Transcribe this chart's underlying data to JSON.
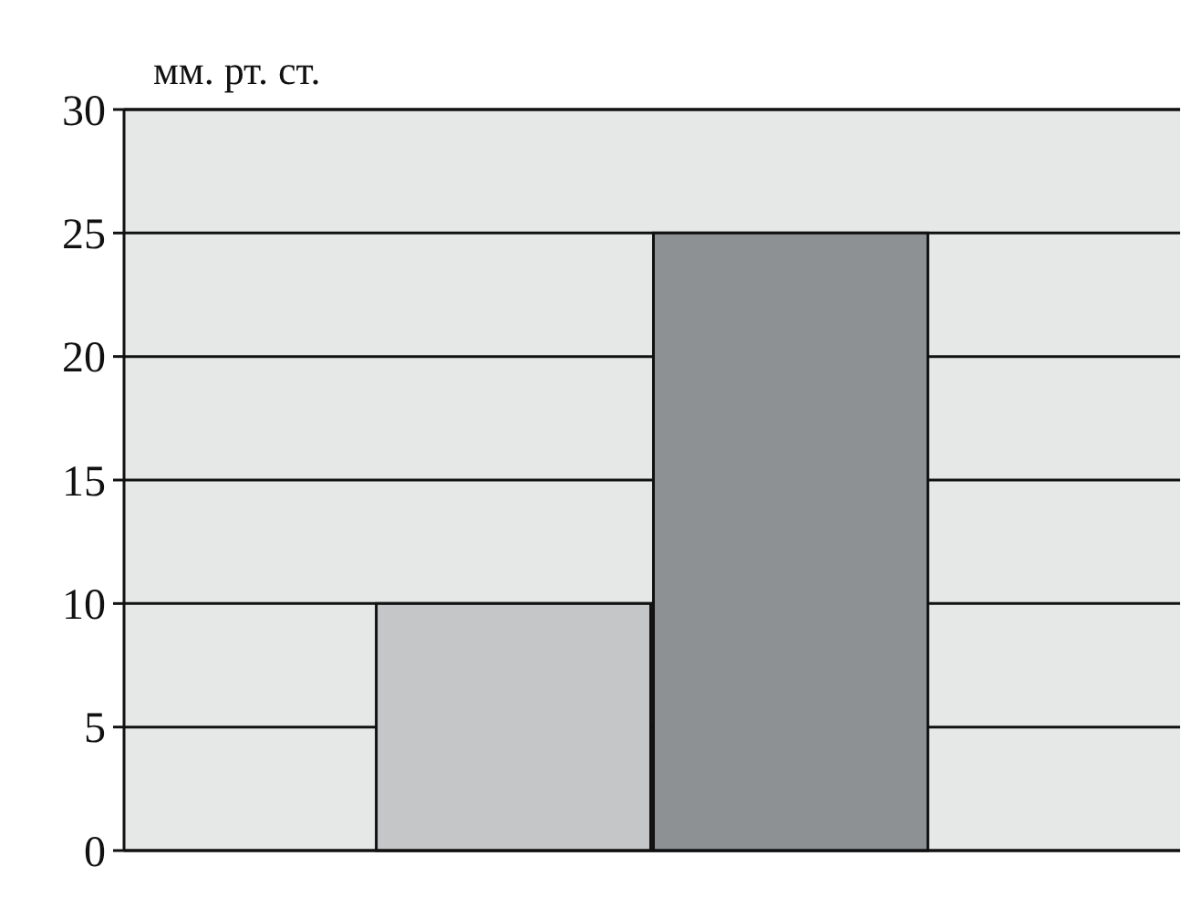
{
  "chart_data": {
    "type": "bar",
    "ylabel": "мм. рт. ст.",
    "categories": [
      null,
      null
    ],
    "values": [
      10,
      25
    ],
    "colors": [
      "#c4c6c8",
      "#8e9193"
    ],
    "ylim": [
      0,
      30
    ],
    "yticks": [
      0,
      5,
      10,
      15,
      20,
      25,
      30
    ],
    "grid": "y"
  }
}
